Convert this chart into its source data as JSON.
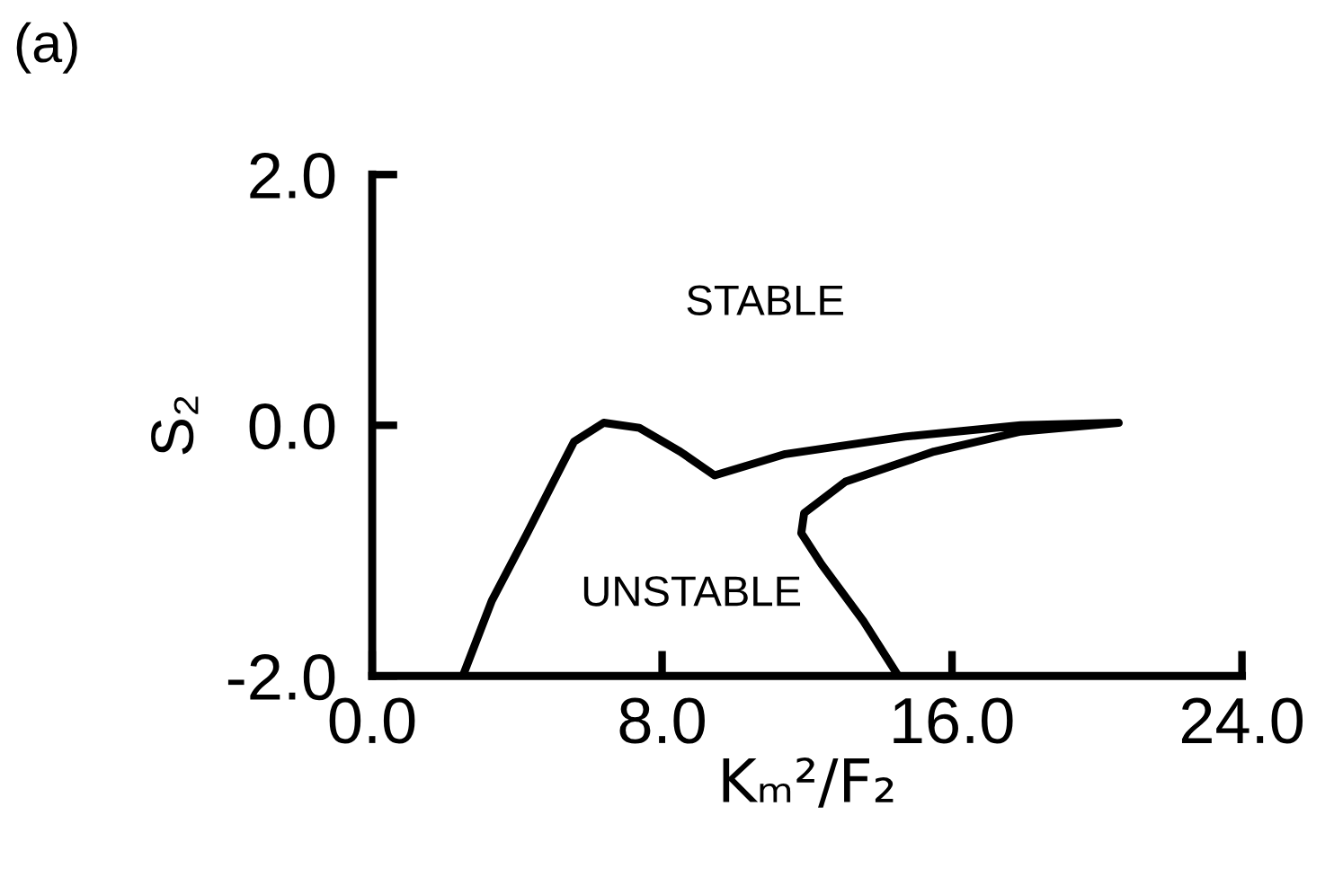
{
  "chart_data": {
    "type": "line",
    "xlabel": "Kₘ²/F₂",
    "ylabel": "S₂",
    "annotations": [
      "(a)",
      "STABLE",
      "UNSTABLE"
    ],
    "series": [
      {
        "color": "#000000",
        "x": [
          2.5,
          3.3,
          4.28,
          4.93,
          5.57,
          6.39,
          7.37,
          8.5,
          9.45,
          11.4,
          14.7,
          17.9,
          20.6,
          17.9,
          15.5,
          13.06,
          11.92,
          11.84,
          12.4,
          13.55,
          14.52
        ],
        "values": [
          -2.0,
          -1.4,
          -0.86,
          -0.49,
          -0.13,
          0.02,
          -0.02,
          -0.21,
          -0.4,
          -0.23,
          -0.09,
          0.0,
          0.02,
          -0.05,
          -0.21,
          -0.45,
          -0.7,
          -0.86,
          -1.11,
          -1.56,
          -2.0
        ]
      }
    ],
    "xlim": [
      0,
      24
    ],
    "ylim": [
      -2,
      2
    ],
    "xticks": [
      {
        "value": 0,
        "label": "0.0"
      },
      {
        "value": 8,
        "label": "8.0"
      },
      {
        "value": 16,
        "label": "16.0"
      },
      {
        "value": 24,
        "label": "24.0"
      }
    ],
    "yticks": [
      {
        "value": -2,
        "label": "-2.0"
      },
      {
        "value": 0,
        "label": "0.0"
      },
      {
        "value": 2,
        "label": "2.0"
      }
    ],
    "grid": false,
    "legend": false,
    "marker": "none",
    "line_style": "solid"
  }
}
